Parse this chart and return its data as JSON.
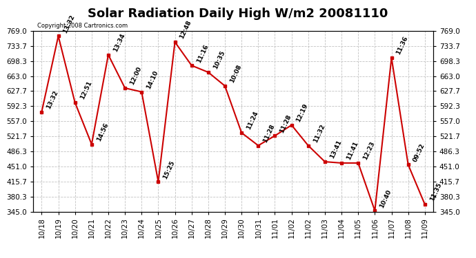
{
  "title": "Solar Radiation Daily High W/m2 20081110",
  "copyright": "Copyright 2008 Cartronics.com",
  "x_labels": [
    "10/18",
    "10/19",
    "10/20",
    "10/21",
    "10/22",
    "10/23",
    "10/24",
    "10/25",
    "10/26",
    "10/27",
    "10/28",
    "10/29",
    "10/30",
    "10/31",
    "11/01",
    "11/02",
    "11/02",
    "11/03",
    "11/04",
    "11/05",
    "11/06",
    "11/07",
    "11/08",
    "11/09"
  ],
  "y_values": [
    579,
    757,
    601,
    503,
    713,
    635,
    626,
    415,
    743,
    688,
    672,
    640,
    530,
    500,
    523,
    548,
    500,
    462,
    459,
    459,
    347,
    706,
    455,
    362
  ],
  "point_labels": [
    "13:32",
    "13:32",
    "12:51",
    "14:56",
    "13:34",
    "12:00",
    "14:10",
    "15:25",
    "12:48",
    "11:16",
    "10:35",
    "10:08",
    "11:24",
    "11:28",
    "11:28",
    "12:19",
    "11:32",
    "13:41",
    "11:41",
    "12:23",
    "10:40",
    "11:36",
    "09:52",
    "11:35"
  ],
  "ylim_min": 345.0,
  "ylim_max": 769.0,
  "yticks": [
    345.0,
    380.3,
    415.7,
    451.0,
    486.3,
    521.7,
    557.0,
    592.3,
    627.7,
    663.0,
    698.3,
    733.7,
    769.0
  ],
  "line_color": "#cc0000",
  "marker_color": "#cc0000",
  "bg_color": "#ffffff",
  "grid_color": "#bbbbbb",
  "title_fontsize": 13,
  "label_fontsize": 7.5,
  "point_label_fontsize": 6.5
}
